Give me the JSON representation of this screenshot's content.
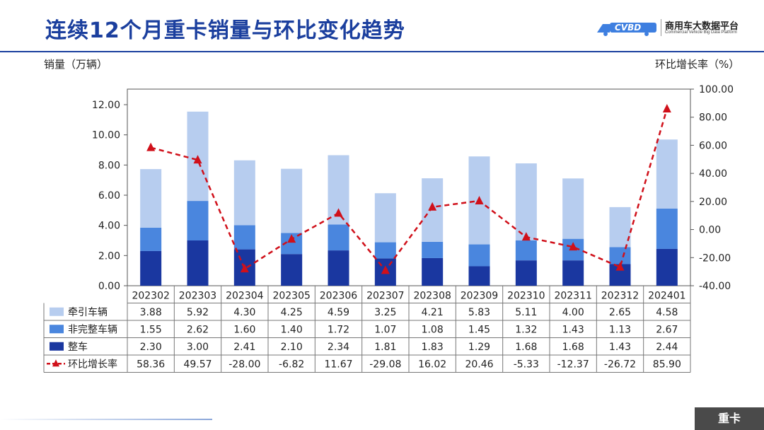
{
  "page": {
    "title": "连续12个月重卡销量与环比变化趋势",
    "footer_badge": "重卡"
  },
  "logo": {
    "mark": "CVBD",
    "name": "商用车大数据平台",
    "subtitle": "Commercial Vehicle Big Data Platform"
  },
  "chart_data": {
    "type": "bar",
    "stacked": true,
    "ylabel": "销量（万辆）",
    "y2label": "环比增长率（%）",
    "ylim": [
      0,
      12
    ],
    "y2lim": [
      -40,
      100
    ],
    "yticks": [
      "0.00",
      "2.00",
      "4.00",
      "6.00",
      "8.00",
      "10.00",
      "12.00"
    ],
    "y2ticks": [
      "100.00",
      "80.00",
      "60.00",
      "40.00",
      "20.00",
      "0.00",
      "-20.00",
      "-40.00"
    ],
    "categories": [
      "202302",
      "202303",
      "202304",
      "202305",
      "202306",
      "202307",
      "202308",
      "202309",
      "202310",
      "202311",
      "202312",
      "202401"
    ],
    "series": [
      {
        "name": "牵引车辆",
        "type": "bar",
        "color": "#b7cdef",
        "values": [
          3.88,
          5.92,
          4.3,
          4.25,
          4.59,
          3.25,
          4.21,
          5.83,
          5.11,
          4.0,
          2.65,
          4.58
        ],
        "labels": [
          "3.88",
          "5.92",
          "4.30",
          "4.25",
          "4.59",
          "3.25",
          "4.21",
          "5.83",
          "5.11",
          "4.00",
          "2.65",
          "4.58"
        ]
      },
      {
        "name": "非完整车辆",
        "type": "bar",
        "color": "#4a86de",
        "values": [
          1.55,
          2.62,
          1.6,
          1.4,
          1.72,
          1.07,
          1.08,
          1.45,
          1.32,
          1.43,
          1.13,
          2.67
        ],
        "labels": [
          "1.55",
          "2.62",
          "1.60",
          "1.40",
          "1.72",
          "1.07",
          "1.08",
          "1.45",
          "1.32",
          "1.43",
          "1.13",
          "2.67"
        ]
      },
      {
        "name": "整车",
        "type": "bar",
        "color": "#1a37a0",
        "values": [
          2.3,
          3.0,
          2.41,
          2.1,
          2.34,
          1.81,
          1.83,
          1.29,
          1.68,
          1.68,
          1.43,
          2.44
        ],
        "labels": [
          "2.30",
          "3.00",
          "2.41",
          "2.10",
          "2.34",
          "1.81",
          "1.83",
          "1.29",
          "1.68",
          "1.68",
          "1.43",
          "2.44"
        ]
      },
      {
        "name": "环比增长率",
        "type": "line",
        "axis": "right",
        "color": "#d0101a",
        "values": [
          58.36,
          49.57,
          -28.0,
          -6.82,
          11.67,
          -29.08,
          16.02,
          20.46,
          -5.33,
          -12.37,
          -26.72,
          85.9
        ],
        "labels": [
          "58.36",
          "49.57",
          "-28.00",
          "-6.82",
          "11.67",
          "-29.08",
          "16.02",
          "20.46",
          "-5.33",
          "-12.37",
          "-26.72",
          "85.90"
        ]
      }
    ],
    "grid": false,
    "legend": "table-below"
  }
}
